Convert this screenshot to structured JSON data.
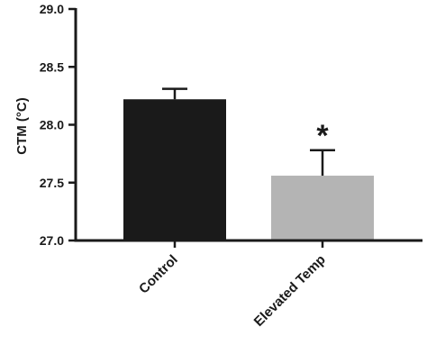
{
  "chart_data": {
    "type": "bar",
    "categories": [
      "Control",
      "Elevated Temp"
    ],
    "values": [
      28.22,
      27.56
    ],
    "error_upper": [
      0.09,
      0.22
    ],
    "ylabel": "CTM (°C)",
    "ylim": [
      27.0,
      29.0
    ],
    "yticks": [
      "27.0",
      "27.5",
      "28.0",
      "28.5",
      "29.0"
    ],
    "annotations": [
      {
        "category": "Elevated Temp",
        "text": "*"
      }
    ],
    "colors": [
      "#1a1a1a",
      "#b4b4b4"
    ],
    "grid": false,
    "legend": "none"
  }
}
